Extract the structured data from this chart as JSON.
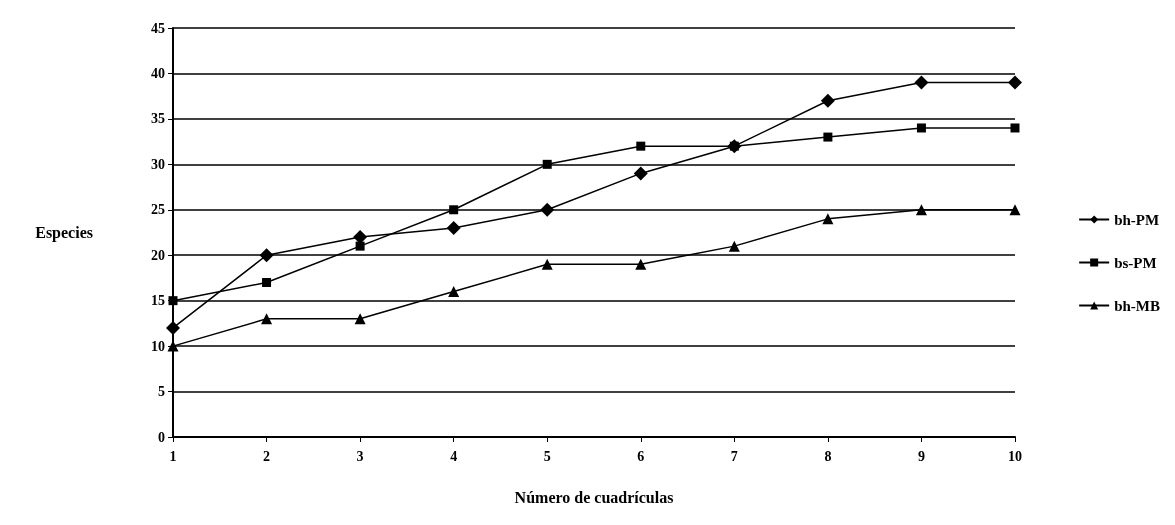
{
  "chart_data": {
    "type": "line",
    "xlabel": "Número de cuadrículas",
    "ylabel": "Especies",
    "x": [
      1,
      2,
      3,
      4,
      5,
      6,
      7,
      8,
      9,
      10
    ],
    "xlim": [
      1,
      10
    ],
    "xticks": [
      1,
      2,
      3,
      4,
      5,
      6,
      7,
      8,
      9,
      10
    ],
    "ylim": [
      0,
      45
    ],
    "yticks": [
      0,
      5,
      10,
      15,
      20,
      25,
      30,
      35,
      40,
      45
    ],
    "grid": "y",
    "legend": "right",
    "line_style": "solid",
    "series": [
      {
        "name": "bh-PM",
        "color": "#000000",
        "marker": "diamond",
        "values": [
          12,
          20,
          22,
          23,
          25,
          29,
          32,
          37,
          39,
          39
        ]
      },
      {
        "name": "bs-PM",
        "color": "#000000",
        "marker": "square",
        "values": [
          15,
          17,
          21,
          25,
          30,
          32,
          32,
          33,
          34,
          34
        ]
      },
      {
        "name": "bh-MB",
        "color": "#000000",
        "marker": "triangle",
        "values": [
          10,
          13,
          13,
          16,
          19,
          19,
          21,
          24,
          25,
          25
        ]
      }
    ]
  }
}
